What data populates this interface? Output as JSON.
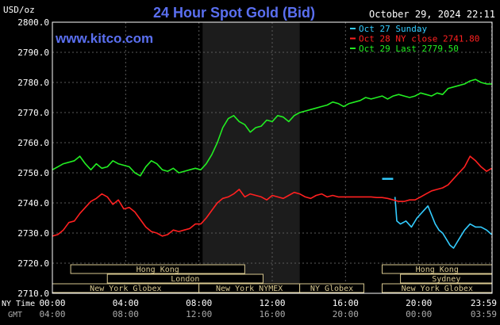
{
  "header": {
    "title": "24 Hour Spot Gold (Bid)",
    "unit": "USD/oz",
    "datetime": "October 29, 2024 22:11",
    "site": "www.kitco.com"
  },
  "legend": [
    {
      "label": "Oct 27 Sunday",
      "color": "#33ccff"
    },
    {
      "label": "Oct 28 NY close 2741.80",
      "color": "#ff2020"
    },
    {
      "label": "Oct 29 Last 2779.50",
      "color": "#22ee22"
    }
  ],
  "axis_titles": {
    "ny_time": "NY Time",
    "gmt": "GMT"
  },
  "sessions": [
    {
      "label": "Hong Kong",
      "row": 0,
      "start_hour": 1.0,
      "end_hour": 10.5
    },
    {
      "label": "Hong Kong",
      "row": 0,
      "start_hour": 18.0,
      "end_hour": 24.0
    },
    {
      "label": "London",
      "row": 1,
      "start_hour": 3.0,
      "end_hour": 11.5
    },
    {
      "label": "Sydney",
      "row": 1,
      "start_hour": 19.0,
      "end_hour": 24.0
    },
    {
      "label": "New York Globex",
      "row": 2,
      "start_hour": 0.0,
      "end_hour": 8.0
    },
    {
      "label": "New York NYMEX",
      "row": 2,
      "start_hour": 8.0,
      "end_hour": 13.5
    },
    {
      "label": "NY Globex",
      "row": 2,
      "start_hour": 13.5,
      "end_hour": 17.0
    },
    {
      "label": "New York Globex",
      "row": 2,
      "start_hour": 18.0,
      "end_hour": 24.0
    }
  ],
  "chart_data": {
    "type": "line",
    "title": "24 Hour Spot Gold (Bid)",
    "ylabel": "USD/oz",
    "ylim": [
      2710,
      2800
    ],
    "xlim": [
      0,
      24
    ],
    "grid": true,
    "legend_position": "top-right",
    "y_ticks": [
      "2800.0",
      "2790.0",
      "2780.0",
      "2770.0",
      "2760.0",
      "2750.0",
      "2740.0",
      "2730.0",
      "2720.0",
      "2710.0"
    ],
    "y_tick_values": [
      2800,
      2790,
      2780,
      2770,
      2760,
      2750,
      2740,
      2730,
      2720,
      2710
    ],
    "x_ticks_ny": [
      "00:00",
      "04:00",
      "08:00",
      "12:00",
      "16:00",
      "20:00",
      "23:59"
    ],
    "x_ticks_gmt": [
      "04:00",
      "08:00",
      "12:00",
      "16:00",
      "20:00",
      "00:00",
      "03:59"
    ],
    "x_tick_hours": [
      0,
      4,
      8,
      12,
      16,
      20,
      23.98
    ],
    "shaded_region": {
      "start_hour": 8.2,
      "end_hour": 13.5
    },
    "series": [
      {
        "name": "Oct 27 Sunday",
        "color": "#33ccff",
        "x": [
          18.0,
          18.6
        ],
        "y": [
          2748.0,
          2748.0
        ]
      },
      {
        "name": "Oct 27 Sunday",
        "color": "#33ccff",
        "x": [
          18.7,
          18.8,
          19.0,
          19.3,
          19.6,
          19.9,
          20.2,
          20.5,
          20.7,
          20.9,
          21.1,
          21.3,
          21.5,
          21.7,
          21.9,
          22.2,
          22.5,
          22.8,
          23.1,
          23.4,
          23.7,
          23.98
        ],
        "y": [
          2742.0,
          2734.0,
          2733.0,
          2734.0,
          2732.0,
          2735.0,
          2737.0,
          2739.0,
          2736.0,
          2733.0,
          2731.0,
          2730.0,
          2728.0,
          2726.0,
          2725.0,
          2728.0,
          2731.0,
          2733.0,
          2732.0,
          2732.0,
          2731.0,
          2729.5
        ]
      },
      {
        "name": "Oct 28 NY close 2741.80",
        "color": "#ff2020",
        "x": [
          0.0,
          0.3,
          0.6,
          0.9,
          1.2,
          1.5,
          1.8,
          2.1,
          2.4,
          2.7,
          3.0,
          3.3,
          3.6,
          3.9,
          4.2,
          4.5,
          4.8,
          5.1,
          5.4,
          5.7,
          6.0,
          6.3,
          6.6,
          6.9,
          7.2,
          7.5,
          7.8,
          8.1,
          8.4,
          8.7,
          9.0,
          9.3,
          9.6,
          9.9,
          10.2,
          10.5,
          10.8,
          11.1,
          11.4,
          11.7,
          12.0,
          12.3,
          12.6,
          12.9,
          13.2,
          13.5,
          13.8,
          14.1,
          14.4,
          14.7,
          15.0,
          15.3,
          15.6,
          15.9,
          16.2,
          16.5,
          16.8,
          17.1,
          17.4,
          17.7,
          18.0,
          18.3,
          18.6,
          18.9,
          19.2,
          19.5,
          19.8,
          20.1,
          20.4,
          20.7,
          21.0,
          21.3,
          21.6,
          21.9,
          22.2,
          22.5,
          22.8,
          23.1,
          23.4,
          23.7,
          23.98
        ],
        "y": [
          2729.0,
          2729.5,
          2731.0,
          2733.5,
          2734.0,
          2736.5,
          2738.5,
          2740.5,
          2741.5,
          2743.0,
          2742.0,
          2739.5,
          2741.0,
          2738.0,
          2738.5,
          2737.0,
          2734.5,
          2732.0,
          2730.5,
          2730.0,
          2729.0,
          2729.5,
          2731.0,
          2730.5,
          2731.0,
          2731.5,
          2733.0,
          2733.0,
          2735.0,
          2737.5,
          2740.0,
          2741.5,
          2742.0,
          2743.0,
          2744.5,
          2742.0,
          2743.0,
          2742.5,
          2742.0,
          2741.0,
          2742.5,
          2742.0,
          2741.5,
          2742.5,
          2743.5,
          2743.0,
          2742.0,
          2741.5,
          2742.5,
          2743.0,
          2742.0,
          2742.5,
          2742.0,
          2742.0,
          2742.0,
          2742.0,
          2742.0,
          2742.0,
          2742.0,
          2741.8,
          2741.8,
          2741.5,
          2741.0,
          2740.5,
          2740.5,
          2741.0,
          2741.0,
          2742.0,
          2743.0,
          2744.0,
          2744.5,
          2745.0,
          2746.0,
          2748.0,
          2750.0,
          2752.0,
          2755.5,
          2754.0,
          2752.0,
          2750.5,
          2751.5
        ]
      },
      {
        "name": "Oct 29 Last 2779.50",
        "color": "#22ee22",
        "x": [
          0.0,
          0.3,
          0.6,
          0.9,
          1.2,
          1.5,
          1.8,
          2.1,
          2.4,
          2.7,
          3.0,
          3.3,
          3.6,
          3.9,
          4.2,
          4.5,
          4.8,
          5.1,
          5.4,
          5.7,
          6.0,
          6.3,
          6.6,
          6.9,
          7.2,
          7.5,
          7.8,
          8.1,
          8.4,
          8.7,
          9.0,
          9.3,
          9.6,
          9.9,
          10.2,
          10.5,
          10.8,
          11.1,
          11.4,
          11.7,
          12.0,
          12.3,
          12.6,
          12.9,
          13.2,
          13.5,
          13.8,
          14.1,
          14.4,
          14.7,
          15.0,
          15.3,
          15.6,
          15.9,
          16.2,
          16.5,
          16.8,
          17.1,
          17.4,
          17.7,
          18.0,
          18.3,
          18.6,
          18.9,
          19.2,
          19.5,
          19.8,
          20.1,
          20.4,
          20.7,
          21.0,
          21.3,
          21.6,
          21.9,
          22.2,
          22.5,
          22.8,
          23.1,
          23.4,
          23.7,
          23.98
        ],
        "y": [
          2751.0,
          2752.0,
          2753.0,
          2753.5,
          2754.0,
          2755.5,
          2753.0,
          2751.0,
          2753.0,
          2751.5,
          2752.0,
          2754.0,
          2753.0,
          2752.5,
          2752.0,
          2750.0,
          2749.0,
          2752.0,
          2754.0,
          2753.0,
          2751.0,
          2750.5,
          2751.5,
          2750.0,
          2750.5,
          2751.0,
          2751.5,
          2751.0,
          2753.0,
          2756.0,
          2760.0,
          2765.0,
          2768.0,
          2769.0,
          2767.0,
          2766.0,
          2763.5,
          2765.0,
          2765.5,
          2767.5,
          2767.0,
          2769.0,
          2768.5,
          2767.0,
          2769.0,
          2770.0,
          2770.5,
          2771.0,
          2771.5,
          2772.0,
          2772.5,
          2773.5,
          2773.0,
          2772.0,
          2773.0,
          2773.5,
          2774.0,
          2775.0,
          2774.5,
          2775.0,
          2775.5,
          2774.5,
          2775.5,
          2776.0,
          2775.5,
          2775.0,
          2775.5,
          2776.5,
          2776.0,
          2775.5,
          2776.5,
          2776.0,
          2778.0,
          2778.5,
          2779.0,
          2779.5,
          2780.5,
          2781.0,
          2780.0,
          2779.5,
          2779.5
        ]
      }
    ]
  }
}
